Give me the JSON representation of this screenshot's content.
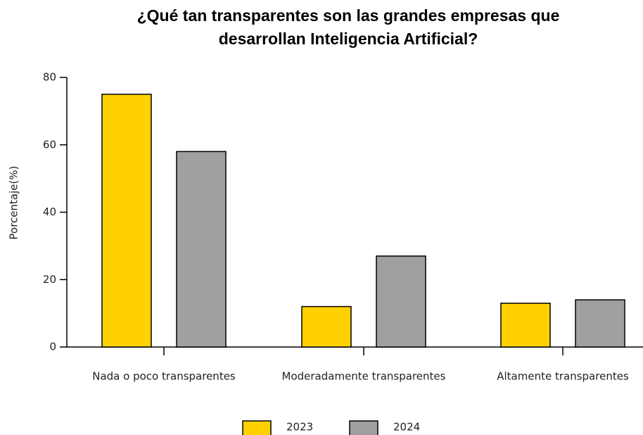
{
  "chart_data": {
    "type": "bar",
    "title": [
      "¿Qué tan transparentes son las grandes empresas que",
      "desarrollan Inteligencia Artificial?"
    ],
    "y_label": "Porcentaje(%)",
    "categories": [
      "Nada o poco transparentes",
      "Moderadamente transparentes",
      "Altamente transparentes"
    ],
    "series": [
      {
        "name": "2023",
        "color": "#ffd100",
        "values": [
          75,
          12,
          13
        ]
      },
      {
        "name": "2024",
        "color": "#a0a0a2",
        "values": [
          58,
          27,
          14
        ]
      }
    ],
    "ylim": [
      0,
      80
    ],
    "yticks": [
      0,
      20,
      40,
      60,
      80
    ],
    "grid": false,
    "legend": "bottom"
  }
}
